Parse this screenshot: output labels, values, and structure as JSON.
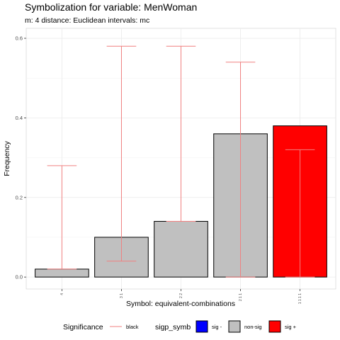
{
  "chart_data": {
    "type": "bar",
    "title": "Symbolization for variable: MenWoman",
    "subtitle": "m: 4  distance:  Euclidean  intervals:  mc",
    "xlabel": "Symbol: equivalent-combinations",
    "ylabel": "Frequency",
    "ylim": [
      -0.03,
      0.625
    ],
    "yticks": [
      0.0,
      0.2,
      0.4,
      0.6
    ],
    "ytick_labels": [
      "0.0",
      "0.2",
      "0.4",
      "0.6"
    ],
    "categories": [
      "4",
      "3 1",
      "2 2",
      "2 1 1",
      "1 1 1 1"
    ],
    "values": [
      0.02,
      0.1,
      0.14,
      0.36,
      0.38
    ],
    "significance": [
      "non-sig",
      "non-sig",
      "non-sig",
      "non-sig",
      "sig +"
    ],
    "intervals": [
      {
        "low": 0.02,
        "high": 0.28
      },
      {
        "low": 0.04,
        "high": 0.58
      },
      {
        "low": 0.14,
        "high": 0.58
      },
      {
        "low": 0.0,
        "high": 0.54
      },
      {
        "low": 0.0,
        "high": 0.32
      }
    ],
    "grid": true,
    "legend_placement": "bottom",
    "legend": {
      "line_title": "Significance",
      "line_label": "black",
      "fill_title": "sigp_symb",
      "fill_items": [
        {
          "label": "sig -",
          "color": "#0000ff"
        },
        {
          "label": "non-sig",
          "color": "#c0c0c0"
        },
        {
          "label": "sig +",
          "color": "#ff0000"
        }
      ]
    },
    "colors": {
      "non-sig": "#c0c0c0",
      "sig +": "#ff0000",
      "sig -": "#0000ff",
      "interval": "#f08080"
    }
  }
}
